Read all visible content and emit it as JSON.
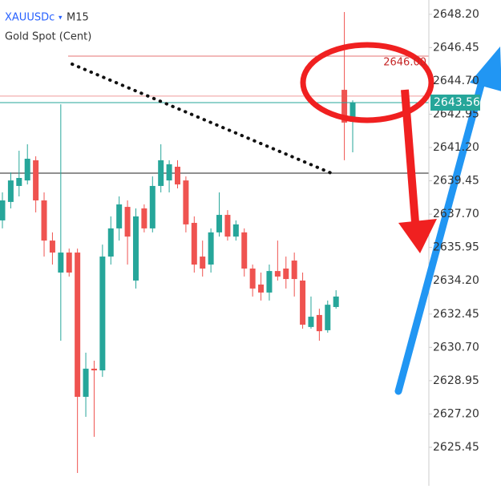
{
  "chart_data": {
    "type": "candlestick",
    "title": "XAUUSDc",
    "timeframe": "M15",
    "subtitle": "Gold Spot (Cent)",
    "up_color": "#26a69a",
    "down_color": "#ef5350",
    "open": [
      2637.37,
      2638.34,
      2639.18,
      2639.47,
      2640.53,
      2638.42,
      2636.31,
      2634.63,
      2635.68,
      2635.68,
      2628.1,
      2629.58,
      2629.49,
      2635.47,
      2636.95,
      2638.08,
      2634.21,
      2638.0,
      2636.95,
      2639.18,
      2639.47,
      2640.19,
      2639.47,
      2637.24,
      2635.47,
      2635.05,
      2636.74,
      2637.66,
      2636.52,
      2636.74,
      2634.84,
      2634.0,
      2633.58,
      2634.71,
      2634.84,
      2635.26,
      2634.21,
      2631.77,
      2632.4,
      2631.6,
      2632.82,
      2644.23,
      2642.55
    ],
    "high": [
      2638.84,
      2639.89,
      2641.03,
      2641.37,
      2640.74,
      2638.84,
      2636.74,
      2643.47,
      2635.89,
      2635.89,
      2630.42,
      2630.0,
      2636.1,
      2637.58,
      2638.63,
      2638.42,
      2638.0,
      2638.21,
      2639.68,
      2641.37,
      2640.53,
      2640.53,
      2639.68,
      2637.58,
      2636.31,
      2636.95,
      2638.84,
      2637.91,
      2637.37,
      2636.95,
      2635.05,
      2634.63,
      2635.05,
      2636.31,
      2635.47,
      2635.68,
      2634.63,
      2633.37,
      2632.73,
      2633.16,
      2633.7,
      2648.32,
      2643.68
    ],
    "low": [
      2636.95,
      2638.0,
      2638.63,
      2639.26,
      2637.79,
      2635.47,
      2635.05,
      2631.05,
      2634.42,
      2624.1,
      2627.05,
      2626.0,
      2629.15,
      2635.05,
      2636.31,
      2635.05,
      2633.79,
      2636.74,
      2636.74,
      2638.84,
      2638.84,
      2639.05,
      2636.74,
      2634.63,
      2634.42,
      2634.63,
      2636.52,
      2636.31,
      2636.31,
      2634.42,
      2633.37,
      2633.16,
      2633.16,
      2634.21,
      2633.79,
      2633.37,
      2631.68,
      2631.68,
      2631.05,
      2631.47,
      2632.73,
      2640.53,
      2640.95
    ],
    "close": [
      2638.42,
      2639.47,
      2639.6,
      2640.61,
      2638.42,
      2636.31,
      2635.68,
      2635.68,
      2634.63,
      2628.1,
      2629.58,
      2629.49,
      2635.47,
      2636.95,
      2638.21,
      2636.52,
      2637.58,
      2636.95,
      2639.18,
      2640.53,
      2640.32,
      2639.26,
      2637.16,
      2635.05,
      2634.84,
      2636.74,
      2637.66,
      2636.52,
      2637.16,
      2634.84,
      2633.79,
      2633.58,
      2634.71,
      2634.42,
      2634.29,
      2634.29,
      2631.89,
      2632.31,
      2631.55,
      2632.94,
      2633.37,
      2642.51,
      2643.56
    ],
    "ylim": [
      2624.1,
      2648.95
    ],
    "yticks": [
      {
        "value": 2648.2,
        "label": "2648.20"
      },
      {
        "value": 2646.45,
        "label": "2646.45"
      },
      {
        "value": 2644.7,
        "label": "2644.70"
      },
      {
        "value": 2642.95,
        "label": "2642.95"
      },
      {
        "value": 2641.2,
        "label": "2641.20"
      },
      {
        "value": 2639.45,
        "label": "2639.45"
      },
      {
        "value": 2637.7,
        "label": "2637.70"
      },
      {
        "value": 2635.95,
        "label": "2635.95"
      },
      {
        "value": 2634.2,
        "label": "2634.20"
      },
      {
        "value": 2632.45,
        "label": "2632.45"
      },
      {
        "value": 2630.7,
        "label": "2630.70"
      },
      {
        "value": 2628.95,
        "label": "2628.95"
      },
      {
        "value": 2627.2,
        "label": "2627.20"
      },
      {
        "value": 2625.45,
        "label": "2625.45"
      }
    ],
    "levels": [
      {
        "value": 2646,
        "label": "2646.00",
        "color": "#e57373"
      }
    ],
    "lines": [
      {
        "value": 2643.9,
        "color": "#ef9a9a"
      },
      {
        "value": 2639.85,
        "color": "#222222"
      }
    ],
    "current_price_color": "#26a69a"
  }
}
